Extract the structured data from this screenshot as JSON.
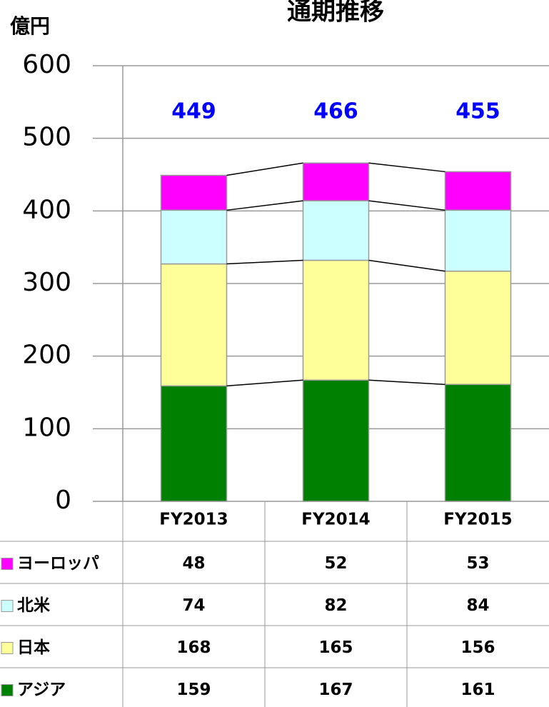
{
  "chart_data": {
    "type": "stacked_bar",
    "title": "通期推移",
    "y_label": "億円",
    "categories": [
      "FY2013",
      "FY2014",
      "FY2015"
    ],
    "series": [
      {
        "name": "アジア",
        "color": "#008000",
        "values": [
          159,
          167,
          161
        ]
      },
      {
        "name": "日本",
        "color": "#ffff99",
        "values": [
          168,
          165,
          156
        ]
      },
      {
        "name": "北米",
        "color": "#ccffff",
        "values": [
          74,
          82,
          84
        ]
      },
      {
        "name": "ヨーロッパ",
        "color": "#ff00ff",
        "values": [
          48,
          52,
          53
        ]
      }
    ],
    "totals": [
      449,
      466,
      455
    ],
    "totals_color": "#0000ff",
    "ylim": [
      0,
      600
    ],
    "yticks": [
      0,
      100,
      200,
      300,
      400,
      500,
      600
    ],
    "grid": true
  }
}
